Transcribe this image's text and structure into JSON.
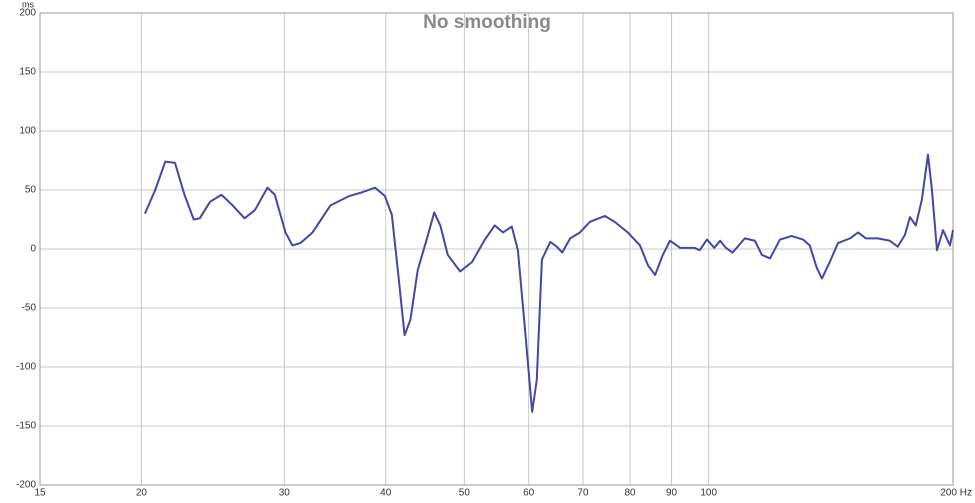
{
  "chart_data": {
    "type": "line",
    "title": "No smoothing",
    "y_unit": "ms",
    "log_x": true,
    "grid": true,
    "xlim": [
      15,
      200
    ],
    "ylim": [
      -200,
      200
    ],
    "xticks": [
      15,
      20,
      30,
      40,
      50,
      60,
      70,
      80,
      90,
      100,
      {
        "value": 200,
        "label": "200 Hz"
      }
    ],
    "yticks": [
      -200,
      -150,
      -100,
      -50,
      0,
      50,
      100,
      150,
      200
    ],
    "x": [
      20.2,
      20.8,
      21.4,
      22.0,
      22.6,
      23.2,
      23.6,
      24.3,
      25.1,
      25.9,
      26.8,
      27.6,
      28.6,
      29.2,
      30.1,
      30.7,
      31.4,
      32.5,
      34.2,
      36.1,
      37.4,
      38.8,
      39.9,
      40.7,
      41.4,
      42.2,
      42.9,
      43.8,
      45.1,
      45.9,
      46.7,
      47.7,
      49.4,
      51.1,
      53.0,
      54.5,
      55.8,
      57.2,
      58.2,
      59.4,
      60.6,
      61.4,
      62.3,
      63.8,
      65.0,
      66.0,
      67.5,
      69.4,
      71.4,
      74.5,
      76.6,
      79.5,
      82.3,
      84.2,
      85.9,
      87.8,
      89.6,
      92.2,
      96.0,
      97.5,
      99.5,
      101.6,
      103.3,
      105.0,
      107.0,
      110.8,
      114.0,
      116.3,
      119.0,
      122.4,
      126.6,
      130.7,
      133.2,
      135.9,
      137.9,
      141.0,
      144.3,
      149.3,
      152.8,
      156.2,
      161.6,
      167.2,
      171.0,
      174.5,
      177.0,
      180.0,
      183.1,
      186.3,
      188.4,
      191.1,
      194.4,
      198.3,
      200.0
    ],
    "series": [
      {
        "color": "#4646a6",
        "values": [
          30,
          50,
          74,
          73,
          46,
          25,
          26,
          40,
          46,
          37,
          26,
          33,
          52,
          46,
          14,
          3,
          5,
          14,
          37,
          45,
          48,
          52,
          45,
          29,
          -18,
          -73,
          -60,
          -18,
          12,
          31,
          20,
          -5,
          -19,
          -11,
          8,
          20,
          14,
          19,
          -1,
          -69,
          -138,
          -111,
          -9,
          6,
          2,
          -3,
          9,
          14,
          23,
          28,
          23,
          14,
          3,
          -14,
          -22,
          -5,
          7,
          1,
          1,
          -1,
          8,
          1,
          7,
          1,
          -3,
          9,
          7,
          -5,
          -8,
          8,
          11,
          8,
          3,
          -16,
          -25,
          -11,
          5,
          9,
          14,
          9,
          9,
          7,
          2,
          12,
          27,
          20,
          42,
          80,
          50,
          -1,
          16,
          3,
          16
        ]
      }
    ]
  }
}
